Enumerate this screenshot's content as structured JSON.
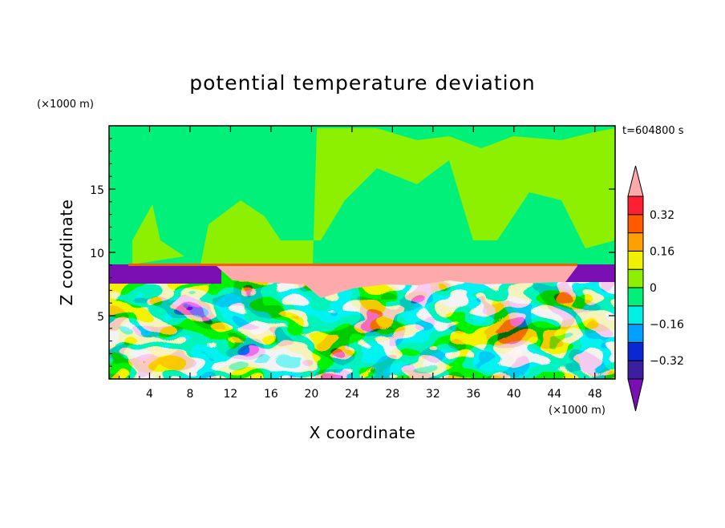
{
  "chart_data": {
    "type": "heatmap",
    "title": "potential temperature deviation",
    "xlabel": "X coordinate",
    "ylabel": "Z coordinate",
    "x_unit": "(×1000 m)",
    "y_unit": "(×1000 m)",
    "time_label": "t=604800 s",
    "xlim": [
      0,
      50
    ],
    "ylim": [
      0,
      20
    ],
    "x_ticks": [
      4,
      8,
      12,
      16,
      20,
      24,
      28,
      32,
      36,
      40,
      44,
      48
    ],
    "y_ticks": [
      5,
      10,
      15
    ],
    "colorbar": {
      "levels": [
        -0.48,
        -0.4,
        -0.32,
        -0.24,
        -0.16,
        -0.08,
        0,
        0.08,
        0.16,
        0.24,
        0.32,
        0.4
      ],
      "tick_labels": [
        "0.32",
        "0.16",
        "0",
        "−0.16",
        "−0.32"
      ],
      "tick_values": [
        0.32,
        0.16,
        0,
        -0.16,
        -0.32
      ],
      "colors": [
        "#7a0fb4",
        "#3c1ea0",
        "#0a28d2",
        "#00a0ff",
        "#00f0e6",
        "#00f07a",
        "#8cf000",
        "#f0f000",
        "#ffa000",
        "#ff5a00",
        "#ff1e32",
        "#ffaaaa"
      ]
    }
  }
}
